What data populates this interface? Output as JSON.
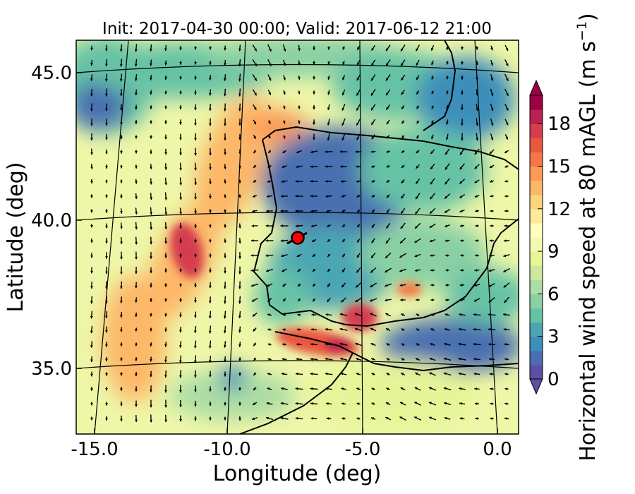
{
  "title": "Init: 2017-04-30 00:00; Valid: 2017-06-12 21:00",
  "x_axis": {
    "label": "Longitude (deg)",
    "ticks": [
      "-15.0",
      "-10.0",
      "-5.0",
      "0.0"
    ]
  },
  "y_axis": {
    "label": "Latitude (deg)",
    "ticks": [
      "45.0",
      "40.0",
      "35.0"
    ]
  },
  "colorbar": {
    "label_main": "Horizontal wind speed at 80 mAGL (m s",
    "label_exp": "−1",
    "label_end": ")",
    "ticks": [
      "0",
      "3",
      "6",
      "9",
      "12",
      "15",
      "18"
    ],
    "min": 0,
    "max": 20,
    "extend": "both",
    "colors": [
      "#5e4fa2",
      "#4a6fb0",
      "#3d8fba",
      "#4ba6b3",
      "#66c2a5",
      "#8ad0a4",
      "#abdda4",
      "#cbe99f",
      "#e6f598",
      "#f3f9b0",
      "#fffebe",
      "#fee999",
      "#fed380",
      "#fdb768",
      "#fb9a57",
      "#f57747",
      "#e8573f",
      "#d53e4f",
      "#bb2150",
      "#9e0142"
    ]
  },
  "map": {
    "lon_range": [
      -16,
      0.3
    ],
    "lat_range": [
      32.5,
      46.2
    ],
    "marker_color": "#ff0000",
    "marker_lon": -7.6,
    "marker_lat": 39.4
  }
}
